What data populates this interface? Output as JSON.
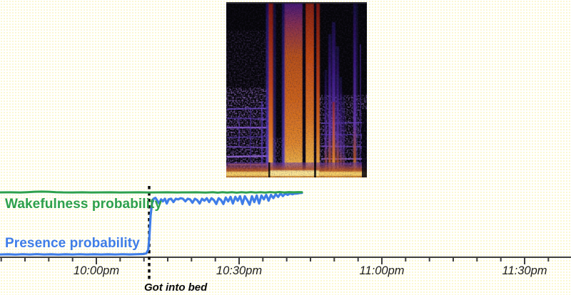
{
  "background_color": "#fffffe",
  "axis_color": "#3f3f3f",
  "spectrogram": {
    "name": "audio-spectrogram",
    "palette": {
      "background": "#050508",
      "low": "#2a1470",
      "mid": "#d85a18",
      "high": "#ffe060"
    }
  },
  "chart_data": {
    "type": "line",
    "title": "",
    "grid": false,
    "legend": "inline-colored-labels",
    "x_axis": {
      "unit": "time-of-day",
      "tick_labels": [
        "10:00pm",
        "10:30pm",
        "11:00pm",
        "11:30pm"
      ],
      "tick_minutes": [
        0,
        30,
        60,
        90
      ],
      "minor_tick_every_min": 5,
      "visible_range_min": [
        -20.3,
        99.7
      ]
    },
    "y_axis": {
      "label": "",
      "range": [
        0,
        1
      ],
      "ticks_visible": false
    },
    "annotations": [
      {
        "label": "Got into bed",
        "minute": 11.1,
        "style": "dashed-vertical-line",
        "color": "#0d0d0d"
      }
    ],
    "series": [
      {
        "name": "Wakefulness probability",
        "color": "#2da04c",
        "points": [
          [
            -20.3,
            0.968
          ],
          [
            -18,
            0.969
          ],
          [
            -16,
            0.967
          ],
          [
            -14.5,
            0.971
          ],
          [
            -13,
            0.977
          ],
          [
            -11.5,
            0.98
          ],
          [
            -10,
            0.977
          ],
          [
            -8.5,
            0.971
          ],
          [
            -7,
            0.968
          ],
          [
            -5,
            0.967
          ],
          [
            -3,
            0.969
          ],
          [
            -1,
            0.967
          ],
          [
            1,
            0.968
          ],
          [
            3,
            0.969
          ],
          [
            5,
            0.967
          ],
          [
            7,
            0.968
          ],
          [
            9,
            0.969
          ],
          [
            11,
            0.967
          ],
          [
            13,
            0.968
          ],
          [
            15,
            0.969
          ],
          [
            17,
            0.967
          ],
          [
            19,
            0.968
          ],
          [
            21,
            0.969
          ],
          [
            23,
            0.966
          ],
          [
            24.5,
            0.971
          ],
          [
            25.5,
            0.963
          ],
          [
            26.5,
            0.971
          ],
          [
            27.5,
            0.964
          ],
          [
            28.5,
            0.971
          ],
          [
            29.5,
            0.963
          ],
          [
            30.5,
            0.971
          ],
          [
            31.5,
            0.965
          ],
          [
            32.5,
            0.972
          ],
          [
            33.5,
            0.964
          ],
          [
            34.5,
            0.971
          ],
          [
            35.5,
            0.966
          ],
          [
            36.5,
            0.972
          ],
          [
            37.5,
            0.967
          ],
          [
            38.5,
            0.973
          ],
          [
            39.5,
            0.967
          ],
          [
            40.5,
            0.972
          ],
          [
            41.5,
            0.969
          ],
          [
            42.5,
            0.972
          ],
          [
            43.2,
            0.971
          ]
        ]
      },
      {
        "name": "Presence probability",
        "color": "#3f7de8",
        "points": [
          [
            -20.3,
            0.03
          ],
          [
            -18.5,
            0.033
          ],
          [
            -17,
            0.029
          ],
          [
            -15.5,
            0.034
          ],
          [
            -14,
            0.03
          ],
          [
            -12.5,
            0.036
          ],
          [
            -11,
            0.03
          ],
          [
            -9.5,
            0.033
          ],
          [
            -8,
            0.029
          ],
          [
            -6.5,
            0.033
          ],
          [
            -5,
            0.03
          ],
          [
            -3.5,
            0.034
          ],
          [
            -2,
            0.03
          ],
          [
            -0.5,
            0.033
          ],
          [
            1,
            0.03
          ],
          [
            2.5,
            0.033
          ],
          [
            4,
            0.03
          ],
          [
            5.5,
            0.034
          ],
          [
            7,
            0.031
          ],
          [
            8.5,
            0.034
          ],
          [
            9.8,
            0.038
          ],
          [
            10.5,
            0.048
          ],
          [
            10.9,
            0.1
          ],
          [
            11.15,
            0.3
          ],
          [
            11.4,
            0.62
          ],
          [
            11.7,
            0.8
          ],
          [
            12.0,
            0.87
          ],
          [
            12.4,
            0.885
          ],
          [
            12.8,
            0.845
          ],
          [
            13.2,
            0.8
          ],
          [
            13.6,
            0.862
          ],
          [
            14.0,
            0.832
          ],
          [
            14.4,
            0.872
          ],
          [
            14.8,
            0.8
          ],
          [
            15.2,
            0.862
          ],
          [
            15.7,
            0.872
          ],
          [
            16.2,
            0.822
          ],
          [
            16.7,
            0.872
          ],
          [
            17.2,
            0.862
          ],
          [
            17.7,
            0.88
          ],
          [
            18.2,
            0.872
          ],
          [
            18.7,
            0.832
          ],
          [
            19.2,
            0.872
          ],
          [
            19.7,
            0.862
          ],
          [
            20.2,
            0.812
          ],
          [
            20.7,
            0.872
          ],
          [
            21.2,
            0.852
          ],
          [
            21.7,
            0.8
          ],
          [
            22.2,
            0.872
          ],
          [
            22.7,
            0.842
          ],
          [
            23.2,
            0.88
          ],
          [
            23.7,
            0.822
          ],
          [
            24.2,
            0.88
          ],
          [
            24.7,
            0.852
          ],
          [
            25.2,
            0.792
          ],
          [
            25.7,
            0.88
          ],
          [
            26.2,
            0.852
          ],
          [
            26.7,
            0.792
          ],
          [
            27.2,
            0.89
          ],
          [
            27.7,
            0.832
          ],
          [
            28.2,
            0.9
          ],
          [
            28.7,
            0.8
          ],
          [
            29.2,
            0.9
          ],
          [
            29.7,
            0.842
          ],
          [
            30.2,
            0.91
          ],
          [
            30.7,
            0.792
          ],
          [
            31.2,
            0.91
          ],
          [
            31.7,
            0.852
          ],
          [
            32.2,
            0.782
          ],
          [
            32.7,
            0.91
          ],
          [
            33.2,
            0.822
          ],
          [
            33.7,
            0.92
          ],
          [
            34.2,
            0.8
          ],
          [
            34.7,
            0.92
          ],
          [
            35.2,
            0.862
          ],
          [
            35.7,
            0.93
          ],
          [
            36.2,
            0.842
          ],
          [
            36.7,
            0.93
          ],
          [
            37.2,
            0.882
          ],
          [
            37.7,
            0.94
          ],
          [
            38.2,
            0.9
          ],
          [
            38.7,
            0.95
          ],
          [
            39.2,
            0.912
          ],
          [
            39.7,
            0.95
          ],
          [
            40.2,
            0.93
          ],
          [
            40.7,
            0.952
          ],
          [
            41.2,
            0.94
          ],
          [
            41.7,
            0.952
          ],
          [
            42.2,
            0.95
          ],
          [
            42.7,
            0.958
          ],
          [
            43.2,
            0.96
          ]
        ]
      }
    ]
  }
}
